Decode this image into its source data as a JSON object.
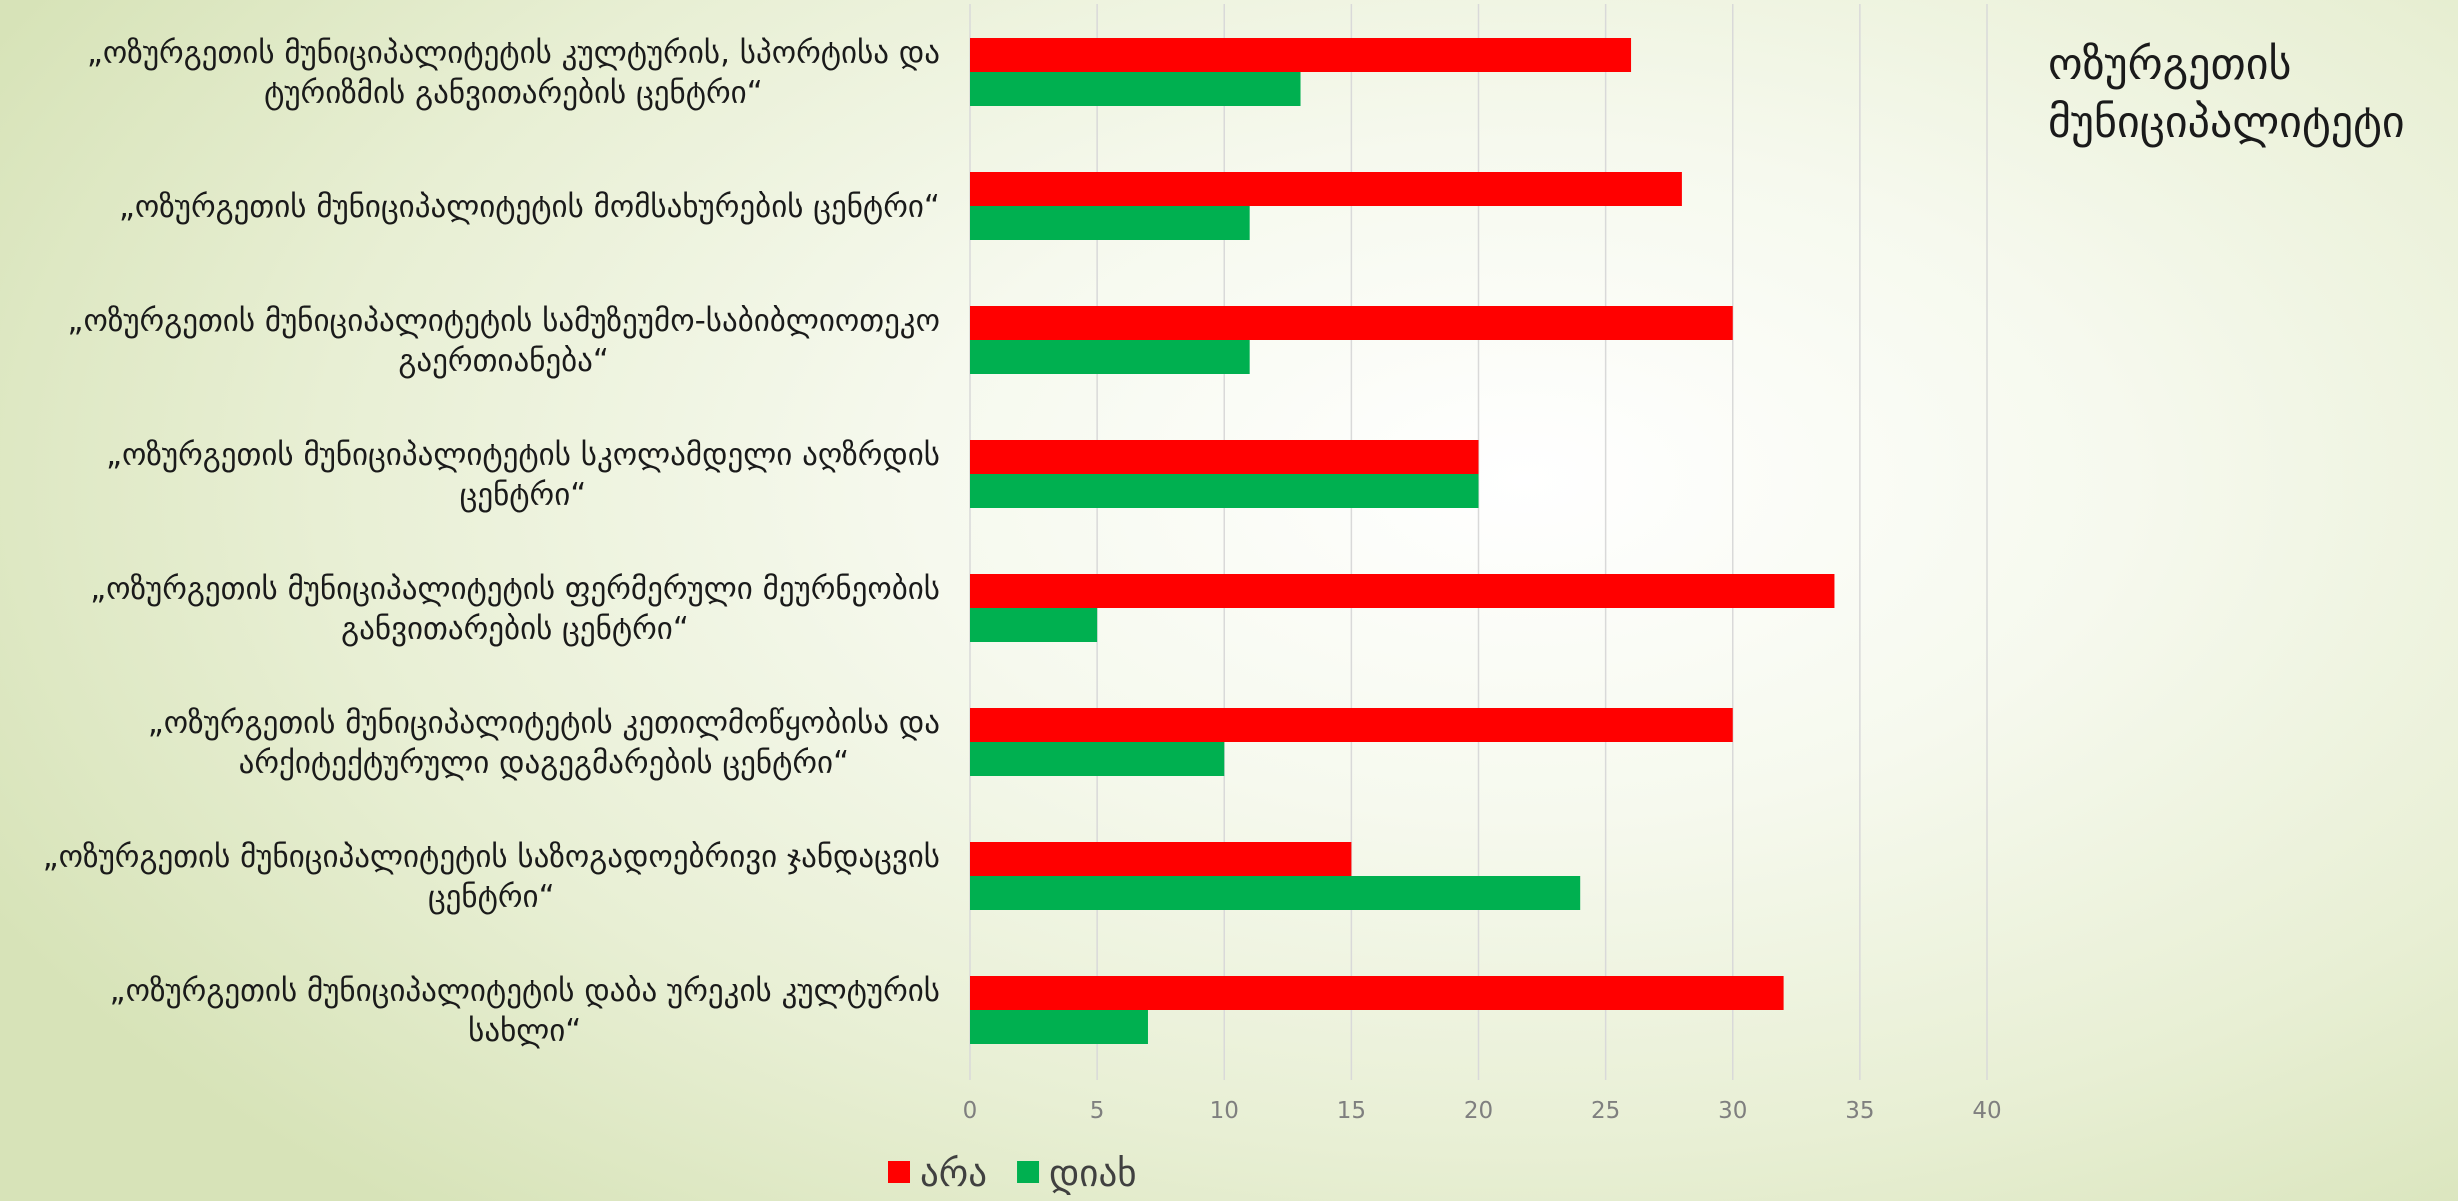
{
  "side_title": {
    "line1": "ოზურგეთის",
    "line2": "მუნიციპალიტეტი"
  },
  "colors": {
    "no": "#ff0000",
    "yes": "#00b050",
    "grid": "#d9d9d9"
  },
  "chart_data": {
    "type": "bar",
    "orientation": "horizontal",
    "categories": [
      [
        "„ოზურგეთის მუნიციპალიტეტის კულტურის, სპორტისა და",
        "ტურიზმის განვითარების ცენტრი“"
      ],
      [
        "„ოზურგეთის მუნიციპალიტეტის მომსახურების ცენტრი“"
      ],
      [
        "„ოზურგეთის მუნიციპალიტეტის სამუზეუმო-საბიბლიოთეკო",
        "გაერთიანება“"
      ],
      [
        "„ოზურგეთის მუნიციპალიტეტის სკოლამდელი აღზრდის",
        "ცენტრი“"
      ],
      [
        "„ოზურგეთის მუნიციპალიტეტის ფერმერული მეურნეობის",
        "განვითარების ცენტრი“"
      ],
      [
        "„ოზურგეთის მუნიციპალიტეტის კეთილმოწყობისა და",
        "არქიტექტურული დაგეგმარების ცენტრი“"
      ],
      [
        "„ოზურგეთის მუნიციპალიტეტის საზოგადოებრივი ჯანდაცვის",
        "ცენტრი“"
      ],
      [
        "„ოზურგეთის მუნიციპალიტეტის დაბა ურეკის კულტურის",
        "სახლი“"
      ]
    ],
    "series": [
      {
        "name": "არა",
        "color": "#ff0000",
        "values": [
          26,
          28,
          30,
          20,
          34,
          30,
          15,
          32
        ]
      },
      {
        "name": "დიახ",
        "color": "#00b050",
        "values": [
          13,
          11,
          11,
          20,
          5,
          10,
          24,
          7
        ]
      }
    ],
    "xlim": [
      0,
      40
    ],
    "xticks": [
      0,
      5,
      10,
      15,
      20,
      25,
      30,
      35,
      40
    ],
    "grid": true,
    "legend": "bottom"
  }
}
